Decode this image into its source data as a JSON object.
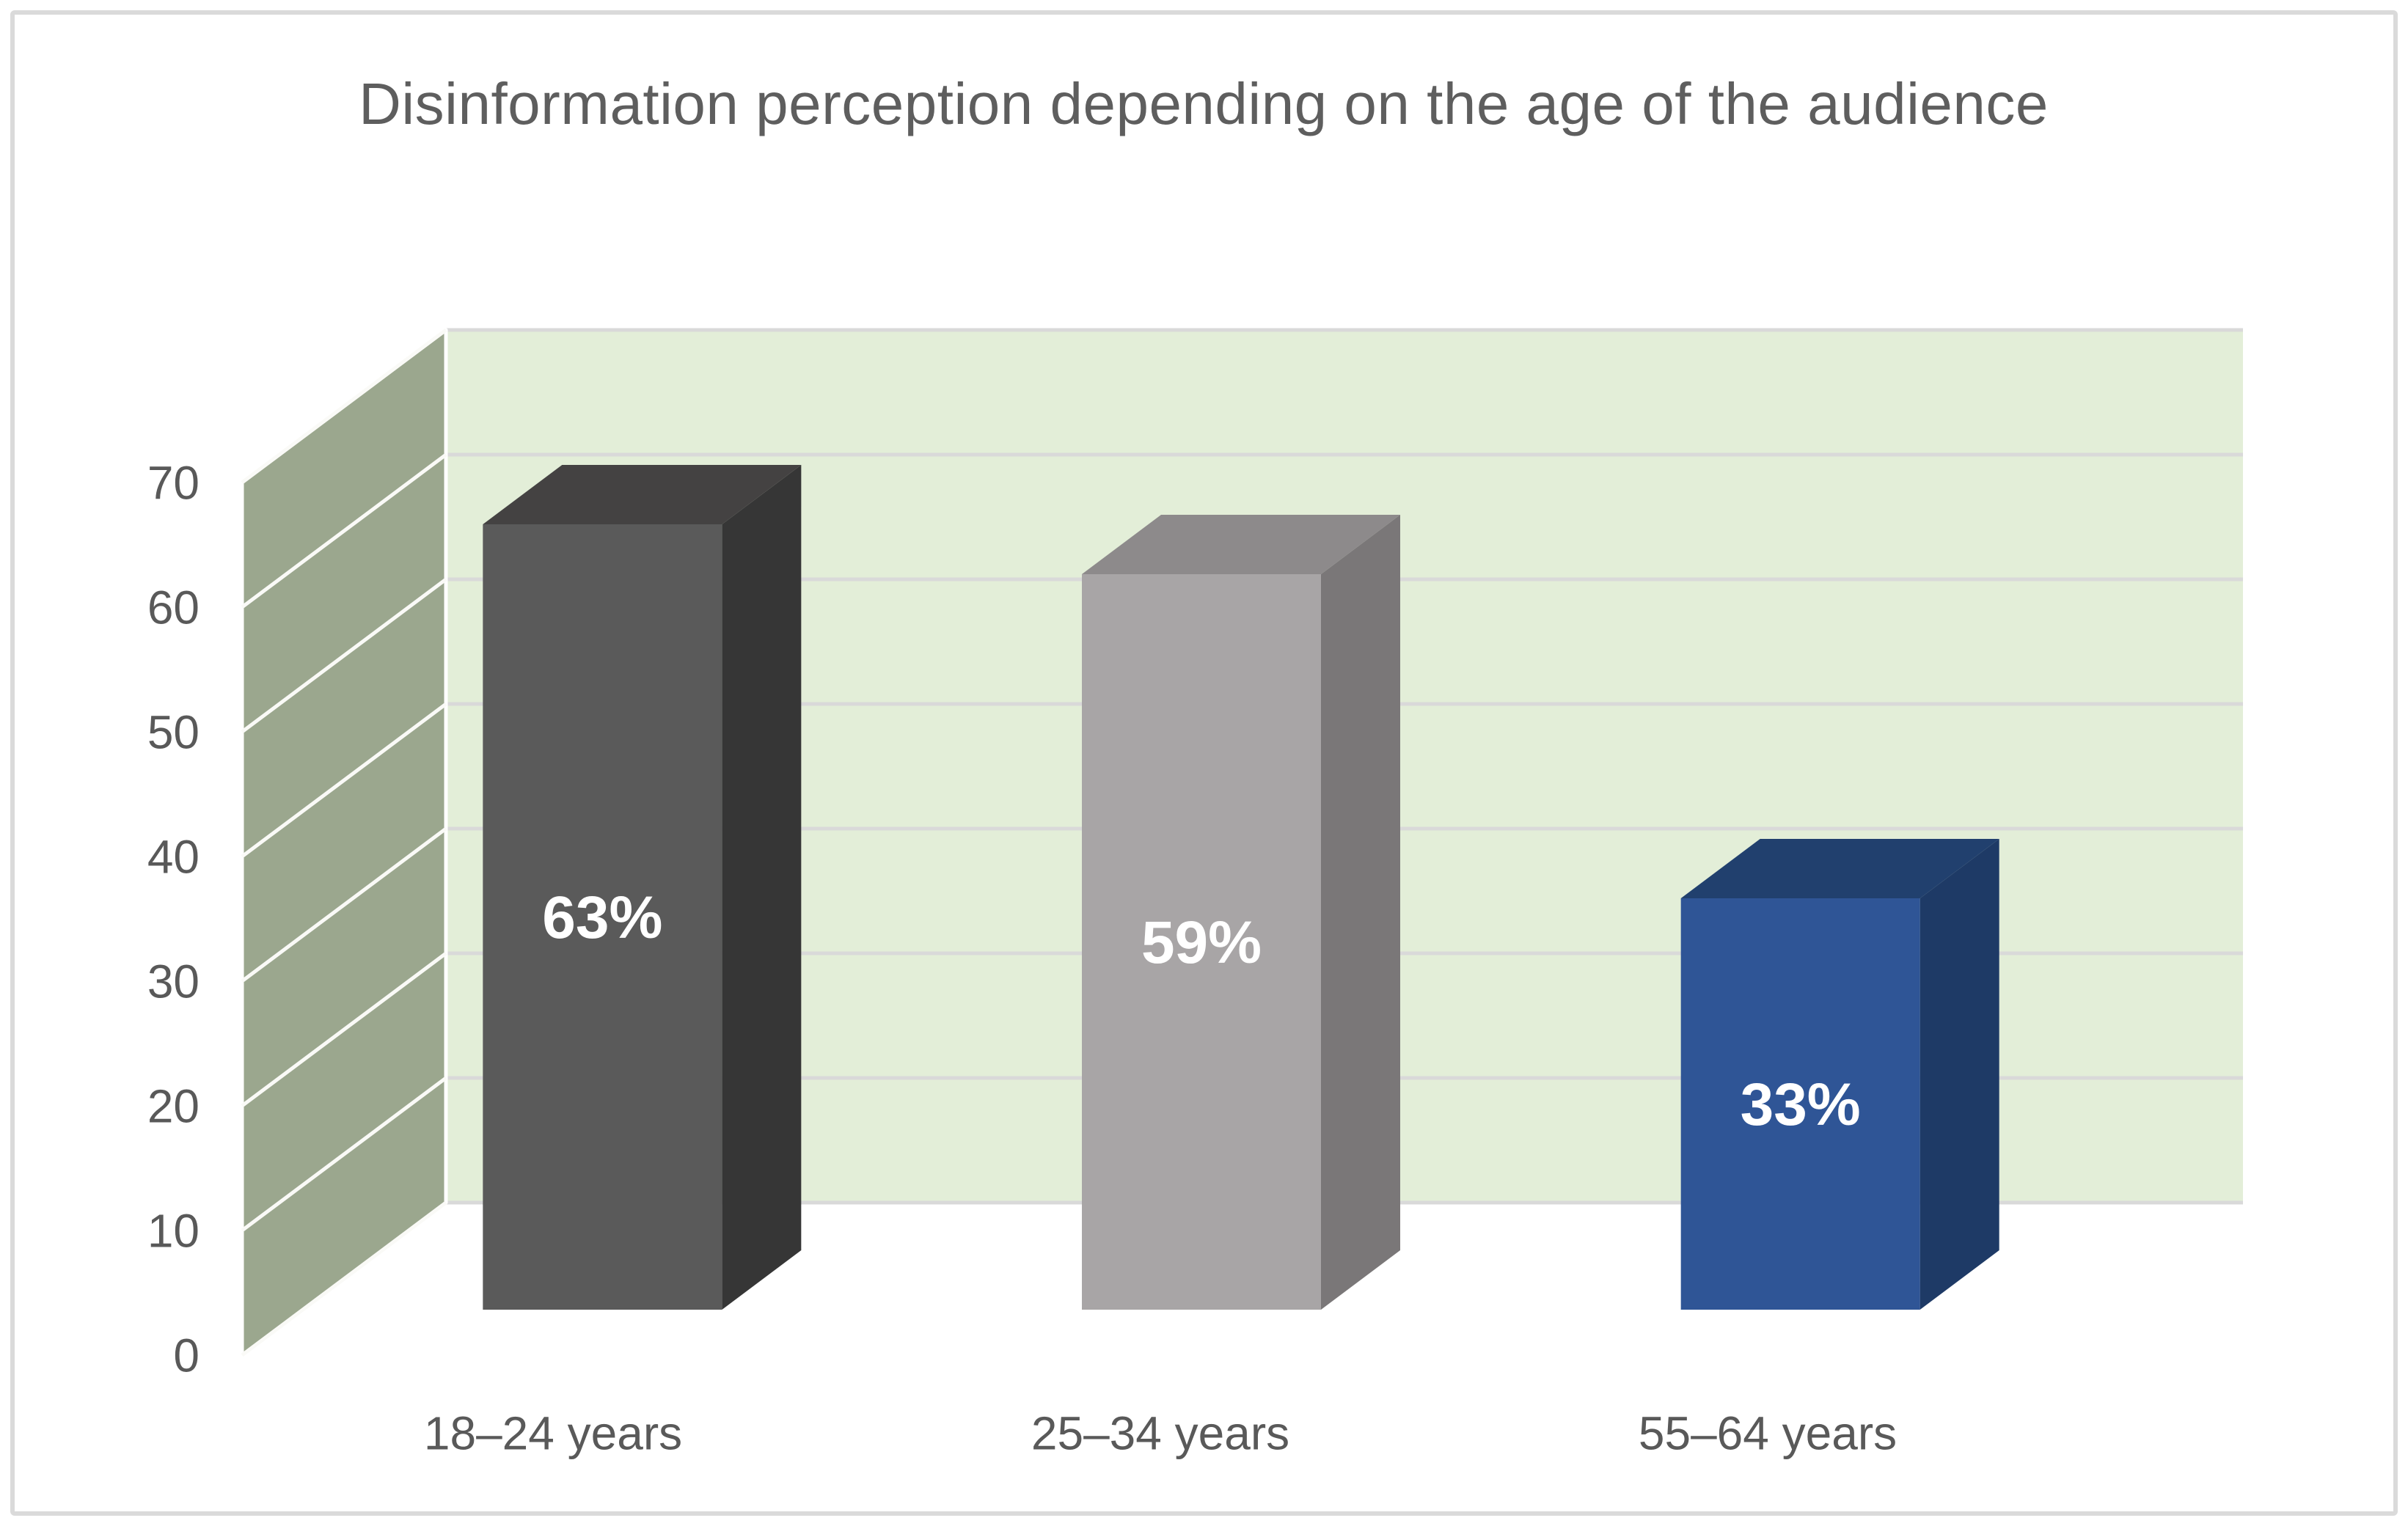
{
  "chart_data": {
    "type": "bar",
    "projection": "3d-column",
    "title": "Disinformation perception depending on the age of the audience",
    "categories": [
      "18–24 years",
      "25–34 years",
      "55–64 years"
    ],
    "values": [
      63,
      59,
      33
    ],
    "data_labels": [
      "63%",
      "59%",
      "33%"
    ],
    "yticks": [
      "0",
      "10",
      "20",
      "30",
      "40",
      "50",
      "60",
      "70"
    ],
    "ylim": [
      0,
      70
    ],
    "grid": true,
    "legend_position": "none",
    "xlabel": "",
    "ylabel": "",
    "bar_colors": [
      {
        "front": "#5a5a5a",
        "side": "#363636",
        "top": "#444242"
      },
      {
        "front": "#a8a5a6",
        "side": "#7a7778",
        "top": "#8d8a8b"
      },
      {
        "front": "#2f5596",
        "side": "#1e3a66",
        "top": "#21406e"
      }
    ],
    "wall_colors": {
      "back_wall": "#e3eed8",
      "side_wall": "#9ba78e",
      "back_gridline": "#d9d9d9",
      "side_gridline": "#fafaf7"
    },
    "axis_text_color": "#595959",
    "data_label_color": "#ffffff",
    "title_color": "#5e5e5e"
  }
}
